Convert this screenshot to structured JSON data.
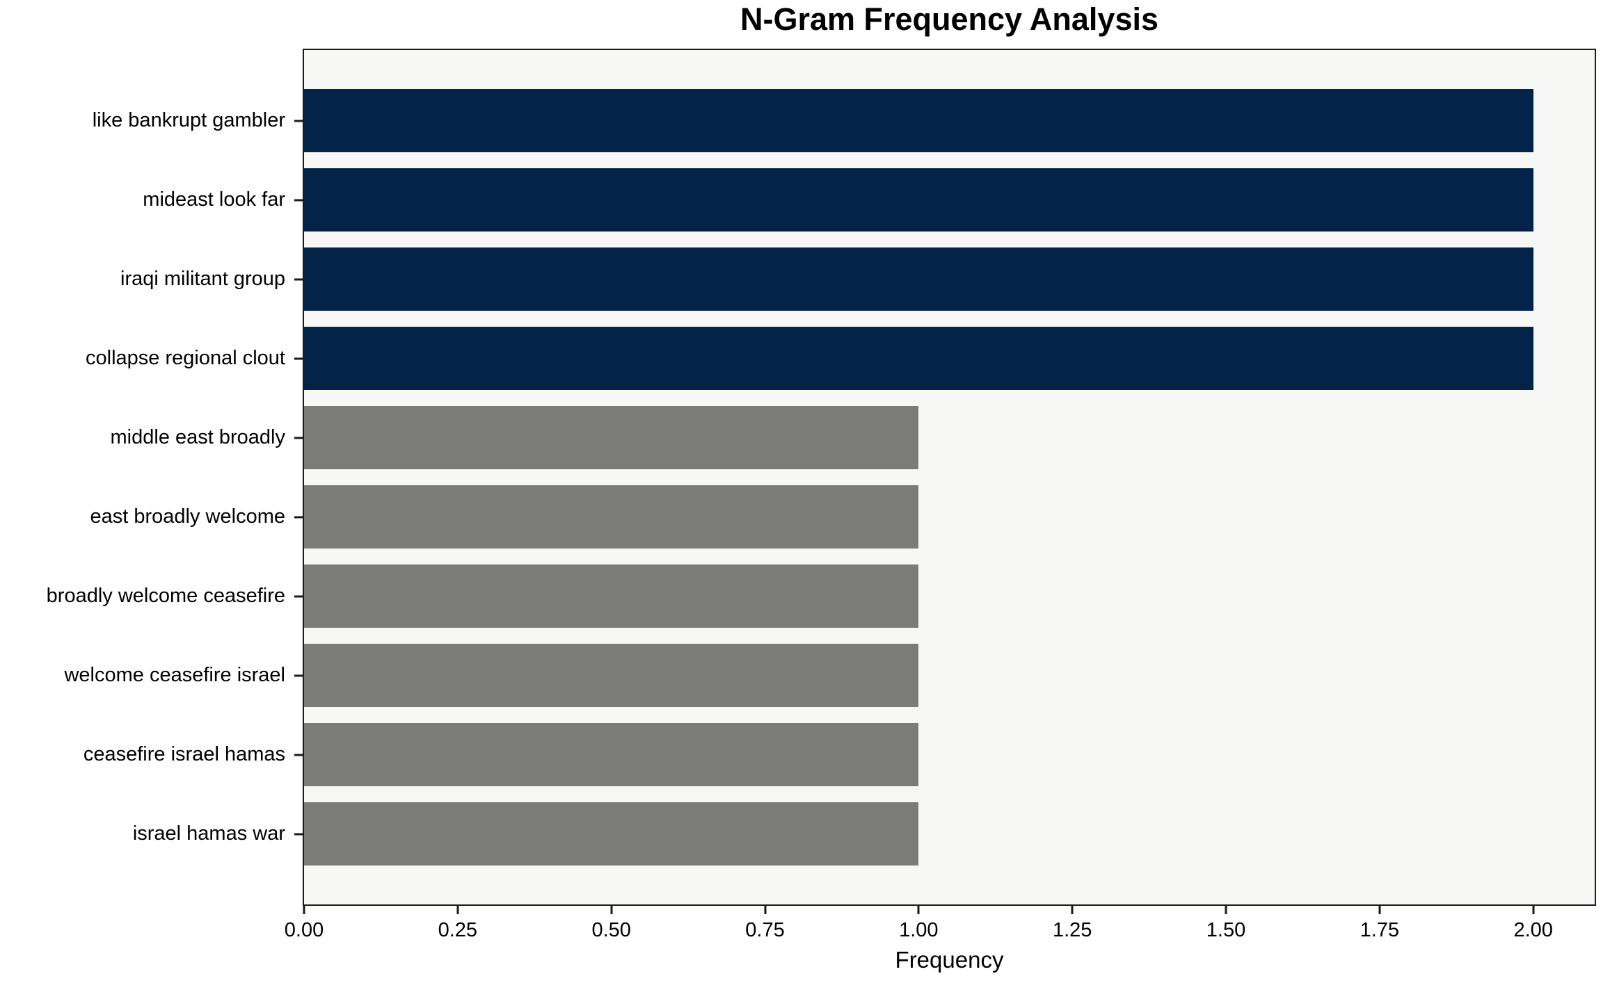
{
  "chart_data": {
    "type": "bar",
    "orientation": "horizontal",
    "title": "N-Gram Frequency Analysis",
    "xlabel": "Frequency",
    "ylabel": "",
    "categories": [
      "like bankrupt gambler",
      "mideast look far",
      "iraqi militant group",
      "collapse regional clout",
      "middle east broadly",
      "east broadly welcome",
      "broadly welcome ceasefire",
      "welcome ceasefire israel",
      "ceasefire israel hamas",
      "israel hamas war"
    ],
    "values": [
      2,
      2,
      2,
      2,
      1,
      1,
      1,
      1,
      1,
      1
    ],
    "bar_colors": [
      "#032349",
      "#032349",
      "#032349",
      "#032349",
      "#7B7B77",
      "#7B7B77",
      "#7B7B77",
      "#7B7B77",
      "#7B7B77",
      "#7B7B77"
    ],
    "xlim": [
      0,
      2.1
    ],
    "xticks": [
      0,
      0.25,
      0.5,
      0.75,
      1.0,
      1.25,
      1.5,
      1.75,
      2.0
    ],
    "xticklabels": [
      "0.00",
      "0.25",
      "0.50",
      "0.75",
      "1.00",
      "1.25",
      "1.50",
      "1.75",
      "2.00"
    ],
    "grid": false,
    "legend": null,
    "colors": {
      "highlight": "#032349",
      "default_bar": "#7B7B77",
      "plot_background": "#F7F7F6",
      "figure_background": "#FFFFFF",
      "axis": "#1A1A1A",
      "text": "#000000"
    }
  }
}
